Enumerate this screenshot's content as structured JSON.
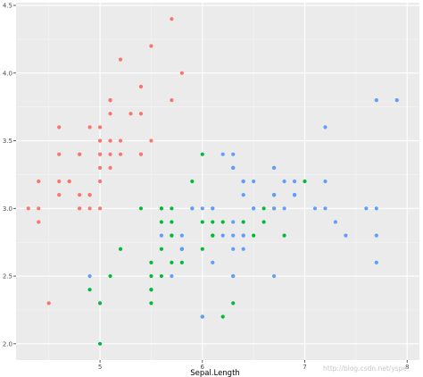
{
  "chart_data": {
    "type": "scatter",
    "xlabel": "Sepal.Length",
    "ylabel": "",
    "xlim": [
      4.18,
      8.12
    ],
    "ylim": [
      1.88,
      4.52
    ],
    "x_ticks": [
      5,
      6,
      7,
      8
    ],
    "y_ticks": [
      2.0,
      2.5,
      3.0,
      3.5,
      4.0,
      4.5
    ],
    "y_tick_labels": [
      "2.0",
      "2.5",
      "3.0",
      "3.5",
      "4.0",
      "4.5"
    ],
    "grid": true,
    "legend": "none",
    "series": [
      {
        "color": "#F8766D",
        "points": [
          [
            4.4,
            3.0
          ],
          [
            4.4,
            3.2
          ],
          [
            4.4,
            2.9
          ],
          [
            4.3,
            3.0
          ],
          [
            4.5,
            2.3
          ],
          [
            4.6,
            3.1
          ],
          [
            4.6,
            3.4
          ],
          [
            4.6,
            3.6
          ],
          [
            4.6,
            3.2
          ],
          [
            4.7,
            3.2
          ],
          [
            4.7,
            3.2
          ],
          [
            4.8,
            3.4
          ],
          [
            4.8,
            3.0
          ],
          [
            4.8,
            3.4
          ],
          [
            4.8,
            3.1
          ],
          [
            4.8,
            3.0
          ],
          [
            4.9,
            3.0
          ],
          [
            4.9,
            3.1
          ],
          [
            4.9,
            3.6
          ],
          [
            4.9,
            3.1
          ],
          [
            5.0,
            3.6
          ],
          [
            5.0,
            3.4
          ],
          [
            5.0,
            3.0
          ],
          [
            5.0,
            3.4
          ],
          [
            5.0,
            3.2
          ],
          [
            5.0,
            3.5
          ],
          [
            5.0,
            3.5
          ],
          [
            5.0,
            3.3
          ],
          [
            5.1,
            3.5
          ],
          [
            5.1,
            3.5
          ],
          [
            5.1,
            3.8
          ],
          [
            5.1,
            3.7
          ],
          [
            5.1,
            3.3
          ],
          [
            5.1,
            3.4
          ],
          [
            5.1,
            3.8
          ],
          [
            5.1,
            3.8
          ],
          [
            5.2,
            3.5
          ],
          [
            5.2,
            3.4
          ],
          [
            5.2,
            4.1
          ],
          [
            5.3,
            3.7
          ],
          [
            5.4,
            3.9
          ],
          [
            5.4,
            3.7
          ],
          [
            5.4,
            3.9
          ],
          [
            5.4,
            3.4
          ],
          [
            5.4,
            3.4
          ],
          [
            5.5,
            4.2
          ],
          [
            5.5,
            3.5
          ],
          [
            5.7,
            4.4
          ],
          [
            5.7,
            3.8
          ],
          [
            5.8,
            4.0
          ]
        ]
      },
      {
        "color": "#00BA38",
        "points": [
          [
            7.0,
            3.2
          ],
          [
            6.4,
            3.2
          ],
          [
            6.9,
            3.1
          ],
          [
            5.5,
            2.3
          ],
          [
            6.5,
            2.8
          ],
          [
            5.7,
            2.8
          ],
          [
            6.3,
            3.3
          ],
          [
            4.9,
            2.4
          ],
          [
            6.6,
            2.9
          ],
          [
            5.2,
            2.7
          ],
          [
            5.0,
            2.0
          ],
          [
            5.9,
            3.0
          ],
          [
            6.0,
            2.2
          ],
          [
            6.1,
            2.9
          ],
          [
            5.6,
            2.9
          ],
          [
            6.7,
            3.1
          ],
          [
            5.6,
            3.0
          ],
          [
            5.8,
            2.7
          ],
          [
            6.2,
            2.2
          ],
          [
            5.6,
            2.5
          ],
          [
            5.9,
            3.2
          ],
          [
            6.1,
            2.8
          ],
          [
            6.3,
            2.5
          ],
          [
            6.1,
            2.8
          ],
          [
            6.4,
            2.9
          ],
          [
            6.6,
            3.0
          ],
          [
            6.8,
            2.8
          ],
          [
            6.7,
            3.0
          ],
          [
            6.0,
            2.9
          ],
          [
            5.7,
            2.6
          ],
          [
            5.5,
            2.4
          ],
          [
            5.5,
            2.4
          ],
          [
            5.8,
            2.7
          ],
          [
            6.0,
            2.7
          ],
          [
            5.4,
            3.0
          ],
          [
            6.0,
            3.4
          ],
          [
            6.7,
            3.1
          ],
          [
            6.3,
            2.3
          ],
          [
            5.6,
            3.0
          ],
          [
            5.5,
            2.5
          ],
          [
            5.5,
            2.6
          ],
          [
            6.1,
            3.0
          ],
          [
            5.8,
            2.6
          ],
          [
            5.0,
            2.3
          ],
          [
            5.6,
            2.7
          ],
          [
            5.7,
            3.0
          ],
          [
            5.7,
            2.9
          ],
          [
            6.2,
            2.9
          ],
          [
            5.1,
            2.5
          ],
          [
            5.7,
            2.8
          ]
        ]
      },
      {
        "color": "#619CFF",
        "points": [
          [
            6.3,
            3.3
          ],
          [
            5.8,
            2.7
          ],
          [
            7.1,
            3.0
          ],
          [
            6.3,
            2.9
          ],
          [
            6.5,
            3.0
          ],
          [
            7.6,
            3.0
          ],
          [
            4.9,
            2.5
          ],
          [
            7.3,
            2.9
          ],
          [
            6.7,
            2.5
          ],
          [
            7.2,
            3.6
          ],
          [
            6.5,
            3.2
          ],
          [
            6.4,
            2.7
          ],
          [
            6.8,
            3.0
          ],
          [
            5.7,
            2.5
          ],
          [
            5.8,
            2.8
          ],
          [
            6.4,
            3.2
          ],
          [
            6.5,
            3.0
          ],
          [
            7.7,
            3.8
          ],
          [
            7.7,
            2.6
          ],
          [
            6.0,
            2.2
          ],
          [
            6.9,
            3.2
          ],
          [
            5.6,
            2.8
          ],
          [
            7.7,
            2.8
          ],
          [
            6.3,
            2.7
          ],
          [
            6.7,
            3.3
          ],
          [
            7.2,
            3.2
          ],
          [
            6.2,
            2.8
          ],
          [
            6.1,
            3.0
          ],
          [
            6.4,
            2.8
          ],
          [
            7.2,
            3.0
          ],
          [
            7.4,
            2.8
          ],
          [
            7.9,
            3.8
          ],
          [
            6.4,
            2.8
          ],
          [
            6.3,
            2.8
          ],
          [
            6.1,
            2.6
          ],
          [
            7.7,
            3.0
          ],
          [
            6.3,
            3.4
          ],
          [
            6.4,
            3.1
          ],
          [
            6.0,
            3.0
          ],
          [
            6.9,
            3.1
          ],
          [
            6.7,
            3.1
          ],
          [
            6.9,
            3.1
          ],
          [
            5.8,
            2.7
          ],
          [
            6.8,
            3.2
          ],
          [
            6.7,
            3.3
          ],
          [
            6.7,
            3.0
          ],
          [
            6.3,
            2.5
          ],
          [
            6.5,
            3.0
          ],
          [
            6.2,
            3.4
          ],
          [
            5.9,
            3.0
          ]
        ]
      }
    ]
  },
  "watermark": "http://blog.csdn.net/yspe"
}
